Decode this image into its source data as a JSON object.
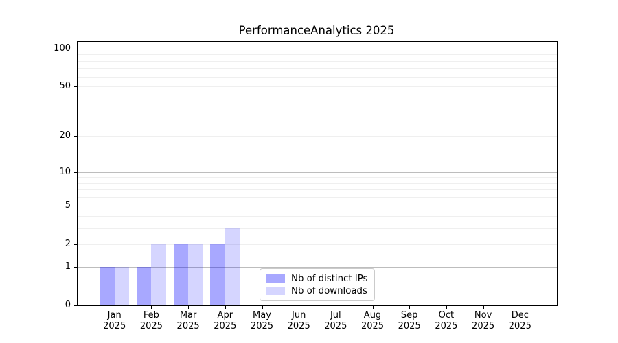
{
  "chart_data": {
    "type": "bar",
    "title": "PerformanceAnalytics 2025",
    "xlabel": "",
    "ylabel": "",
    "categories": [
      "Jan 2025",
      "Feb 2025",
      "Mar 2025",
      "Apr 2025",
      "May 2025",
      "Jun 2025",
      "Jul 2025",
      "Aug 2025",
      "Sep 2025",
      "Oct 2025",
      "Nov 2025",
      "Dec 2025"
    ],
    "x_tick_labels": [
      {
        "month": "Jan",
        "year": "2025"
      },
      {
        "month": "Feb",
        "year": "2025"
      },
      {
        "month": "Mar",
        "year": "2025"
      },
      {
        "month": "Apr",
        "year": "2025"
      },
      {
        "month": "May",
        "year": "2025"
      },
      {
        "month": "Jun",
        "year": "2025"
      },
      {
        "month": "Jul",
        "year": "2025"
      },
      {
        "month": "Aug",
        "year": "2025"
      },
      {
        "month": "Sep",
        "year": "2025"
      },
      {
        "month": "Oct",
        "year": "2025"
      },
      {
        "month": "Nov",
        "year": "2025"
      },
      {
        "month": "Dec",
        "year": "2025"
      }
    ],
    "series": [
      {
        "name": "Nb of distinct IPs",
        "color": "#0000FF57",
        "values": [
          1,
          1,
          2,
          2,
          0,
          0,
          0,
          0,
          0,
          0,
          0,
          0
        ]
      },
      {
        "name": "Nb of downloads",
        "color": "#0000FF2A",
        "values": [
          1,
          2,
          2,
          3,
          0,
          0,
          0,
          0,
          0,
          0,
          0,
          0
        ]
      }
    ],
    "y_scale": "log1p",
    "ylim": [
      0,
      113
    ],
    "y_tick_values": [
      100,
      50,
      20,
      10,
      5,
      2,
      1,
      0
    ],
    "y_tick_labels": [
      "100",
      "50",
      "20",
      "10",
      "5",
      "2",
      "1",
      "0"
    ],
    "gridlines": {
      "major_values": [
        1,
        10,
        100
      ],
      "minor_values": [
        2,
        3,
        4,
        5,
        6,
        7,
        8,
        9,
        20,
        30,
        40,
        50,
        60,
        70,
        80,
        90
      ],
      "major_color": "#bdbdbd",
      "minor_color": "#efefef"
    },
    "legend": {
      "position": "bottom-center",
      "entries": [
        "Nb of distinct IPs",
        "Nb of downloads"
      ]
    },
    "grid": true
  },
  "colors": {
    "background": "#ffffff",
    "axis": "#000000",
    "bar_distinct_ips_rendered": "#aaaaf8",
    "bar_downloads_rendered": "#d8d8f8",
    "legend_border": "#cbcbcb"
  }
}
